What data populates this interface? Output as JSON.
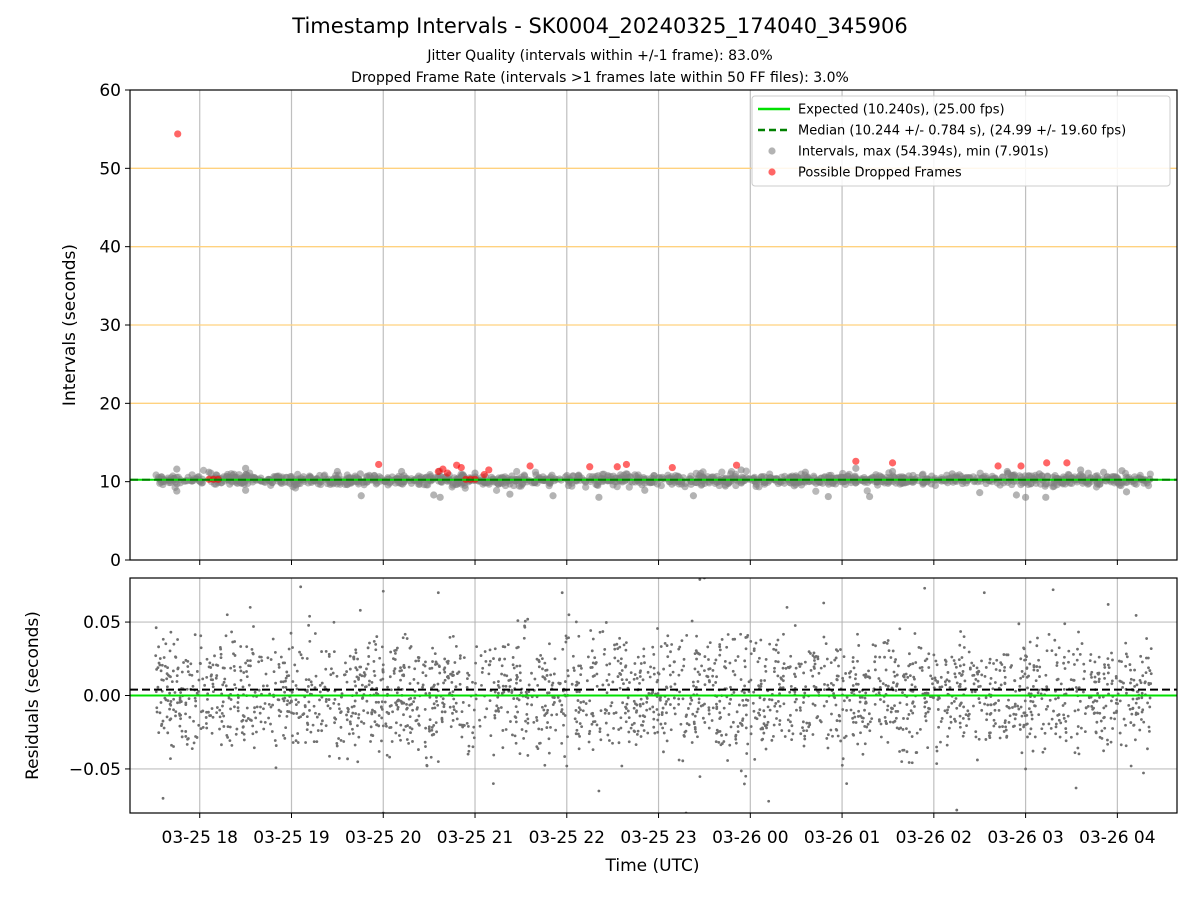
{
  "chart_data": {
    "title": "Timestamp Intervals - SK0004_20240325_174040_345906",
    "subtitle_1": "Jitter Quality (intervals within +/-1 frame): 83.0%",
    "subtitle_2": "Dropped Frame Rate (intervals >1 frames late within 50 FF files): 3.0%",
    "xlabel": "Time (UTC)",
    "x_tick_labels": [
      "03-25 18",
      "03-25 19",
      "03-25 20",
      "03-25 21",
      "03-25 22",
      "03-25 23",
      "03-26 00",
      "03-26 01",
      "03-26 02",
      "03-26 03",
      "03-26 04"
    ],
    "xlim_hours": [
      17.24,
      28.65
    ],
    "x_tick_hours": [
      18,
      19,
      20,
      21,
      22,
      23,
      24,
      25,
      26,
      27,
      28
    ],
    "data_span_hours": [
      17.51,
      28.37
    ],
    "panels": [
      {
        "type": "scatter",
        "ylabel": "Intervals (seconds)",
        "ylim": [
          0,
          60
        ],
        "yticks": [
          0,
          10,
          20,
          30,
          40,
          50,
          60
        ],
        "y_tick_labels": [
          "0",
          "10",
          "20",
          "30",
          "40",
          "50",
          "60"
        ],
        "horizontal_reference_lines": [
          20,
          30,
          40,
          50
        ],
        "reference_line_color": "#ffd27f",
        "grid": "vertical",
        "legend_position": "top-right",
        "legend": [
          "Expected (10.240s), (25.00 fps)",
          "Median (10.244 +/- 0.784 s), (24.99 +/- 19.60 fps)",
          "Intervals, max (54.394s), min (7.901s)",
          "Possible Dropped Frames"
        ],
        "series": [
          {
            "name": "Expected (10.240s), (25.00 fps)",
            "kind": "hline",
            "y": 10.24,
            "color": "#00e000",
            "style": "solid"
          },
          {
            "name": "Median (10.244 +/- 0.784 s), (24.99 +/- 19.60 fps)",
            "kind": "hline",
            "y": 10.244,
            "color": "#008000",
            "style": "dashed"
          },
          {
            "name": "Intervals, max (54.394s), min (7.901s)",
            "kind": "scatter",
            "color": "#808080",
            "center": 10.24,
            "outliers": [
              [
                17.75,
                11.6
              ],
              [
                17.75,
                8.8
              ],
              [
                18.1,
                11.2
              ],
              [
                18.5,
                11.7
              ],
              [
                18.5,
                8.9
              ],
              [
                19.5,
                11.3
              ],
              [
                19.75,
                11.0
              ],
              [
                19.76,
                8.2
              ],
              [
                20.2,
                11.3
              ],
              [
                20.55,
                8.3
              ],
              [
                20.62,
                8.0
              ],
              [
                21.0,
                11.1
              ],
              [
                21.38,
                8.4
              ],
              [
                21.85,
                8.2
              ],
              [
                22.35,
                8.0
              ],
              [
                22.85,
                8.9
              ],
              [
                23.38,
                8.2
              ],
              [
                23.9,
                11.5
              ],
              [
                24.6,
                11.2
              ],
              [
                24.85,
                8.1
              ],
              [
                25.15,
                11.7
              ],
              [
                25.3,
                8.1
              ],
              [
                25.55,
                11.3
              ],
              [
                26.2,
                11.0
              ],
              [
                26.5,
                8.6
              ],
              [
                26.8,
                11.3
              ],
              [
                26.9,
                8.3
              ],
              [
                27.0,
                8.0
              ],
              [
                27.15,
                11.0
              ],
              [
                27.22,
                8.0
              ],
              [
                27.6,
                11.5
              ],
              [
                27.85,
                11.2
              ],
              [
                28.05,
                11.4
              ],
              [
                28.1,
                8.7
              ]
            ]
          },
          {
            "name": "Possible Dropped Frames",
            "kind": "scatter",
            "color": "#ff0000",
            "values": [
              [
                17.76,
                54.394
              ],
              [
                18.1,
                10.3
              ],
              [
                18.15,
                10.3
              ],
              [
                18.2,
                10.3
              ],
              [
                19.95,
                12.2
              ],
              [
                20.6,
                11.3
              ],
              [
                20.65,
                11.6
              ],
              [
                20.7,
                11.1
              ],
              [
                20.8,
                12.1
              ],
              [
                20.85,
                11.8
              ],
              [
                20.9,
                10.3
              ],
              [
                20.95,
                10.3
              ],
              [
                21.0,
                10.3
              ],
              [
                21.1,
                10.9
              ],
              [
                21.15,
                11.5
              ],
              [
                21.6,
                12.0
              ],
              [
                22.25,
                11.9
              ],
              [
                22.55,
                11.9
              ],
              [
                22.65,
                12.2
              ],
              [
                23.15,
                11.8
              ],
              [
                23.85,
                12.1
              ],
              [
                25.15,
                12.6
              ],
              [
                25.55,
                12.4
              ],
              [
                26.7,
                12.0
              ],
              [
                26.95,
                12.0
              ],
              [
                27.23,
                12.4
              ],
              [
                27.45,
                12.4
              ]
            ]
          }
        ]
      },
      {
        "type": "scatter",
        "ylabel": "Residuals (seconds)",
        "ylim": [
          -0.08,
          0.08
        ],
        "yticks": [
          -0.05,
          0.0,
          0.05
        ],
        "y_tick_labels": [
          "−0.05",
          "0.00",
          "0.05"
        ],
        "grid": "both",
        "series": [
          {
            "name": "Expected (10.240s), (25.00 fps)",
            "kind": "hline",
            "y": 0.0,
            "color": "#00e000",
            "style": "solid"
          },
          {
            "name": "Median (10.244 +/- 0.784 s), (24.99 +/- 19.60 fps)",
            "kind": "hline",
            "y": 0.004,
            "color": "#000000",
            "style": "dashed"
          },
          {
            "name": "Residuals",
            "kind": "scatter",
            "color": "#707070",
            "bands": [
              0.02,
              0.0,
              -0.018
            ],
            "spread": 0.012,
            "outliers": [
              [
                17.6,
                -0.07
              ],
              [
                18.3,
                0.055
              ],
              [
                18.55,
                0.06
              ],
              [
                19.1,
                0.074
              ],
              [
                19.75,
                0.058
              ],
              [
                20.0,
                -0.08
              ],
              [
                20.0,
                0.071
              ],
              [
                20.6,
                0.07
              ],
              [
                20.6,
                -0.045
              ],
              [
                21.2,
                -0.06
              ],
              [
                21.95,
                0.07
              ],
              [
                22.0,
                -0.048
              ],
              [
                22.35,
                -0.065
              ],
              [
                22.6,
                -0.048
              ],
              [
                23.3,
                -0.08
              ],
              [
                23.45,
                0.079
              ],
              [
                23.5,
                0.08
              ],
              [
                23.95,
                -0.055
              ],
              [
                24.2,
                -0.072
              ],
              [
                24.4,
                0.06
              ],
              [
                24.8,
                0.063
              ],
              [
                25.05,
                -0.06
              ],
              [
                25.65,
                -0.045
              ],
              [
                25.9,
                0.073
              ],
              [
                26.25,
                -0.078
              ],
              [
                26.55,
                0.07
              ],
              [
                27.0,
                -0.05
              ],
              [
                27.3,
                0.072
              ],
              [
                27.55,
                -0.063
              ],
              [
                27.9,
                0.062
              ],
              [
                28.15,
                -0.048
              ]
            ]
          }
        ]
      }
    ]
  }
}
